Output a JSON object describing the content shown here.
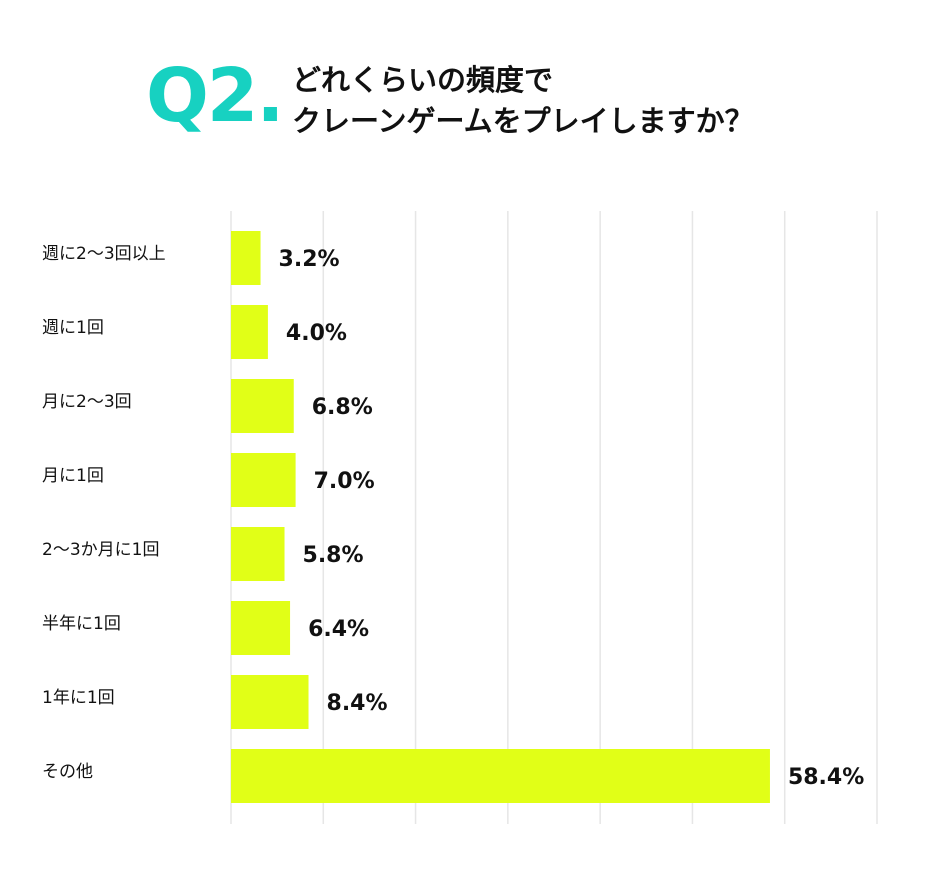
{
  "header": {
    "q_number": "Q2.",
    "question_line1": "どれくらいの頻度で",
    "question_line2": "クレーンゲームをプレイしますか？"
  },
  "colors": {
    "bar": "#e1ff17",
    "accent": "#17d1c1",
    "grid": "#e6e6e6",
    "text": "#111111"
  },
  "chart_data": {
    "type": "bar",
    "orientation": "horizontal",
    "title": "どれくらいの頻度でクレーンゲームをプレイしますか？",
    "categories": [
      "週に2〜3回以上",
      "週に1回",
      "月に2〜3回",
      "月に1回",
      "2〜3か月に1回",
      "半年に1回",
      "1年に1回",
      "その他"
    ],
    "values": [
      3.2,
      4.0,
      6.8,
      7.0,
      5.8,
      6.4,
      8.4,
      58.4
    ],
    "value_labels": [
      "3.2%",
      "4.0%",
      "6.8%",
      "7.0%",
      "5.8%",
      "6.4%",
      "8.4%",
      "58.4%"
    ],
    "xlim": [
      0,
      70
    ],
    "grid": true,
    "legend": "none"
  }
}
